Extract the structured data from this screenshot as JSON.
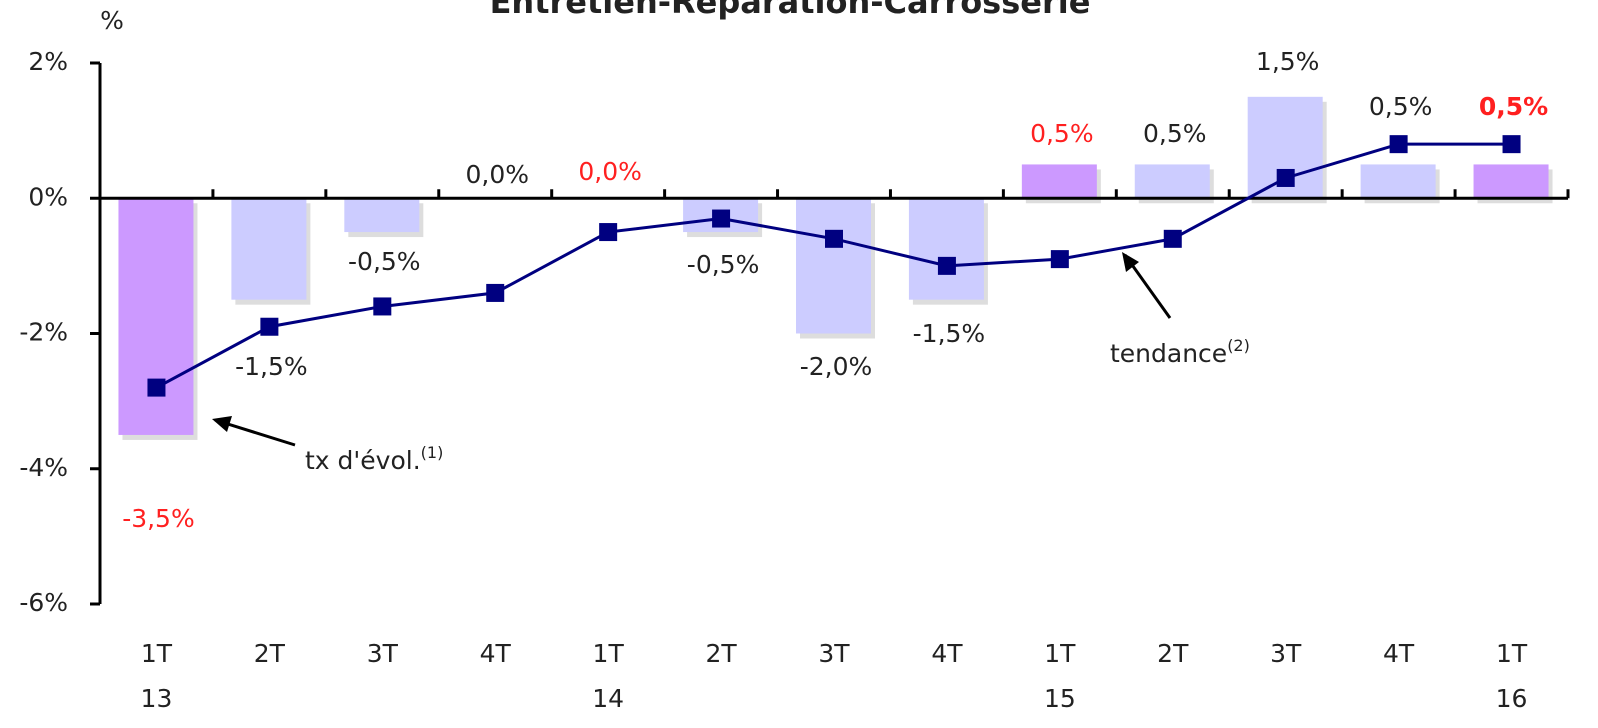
{
  "chart_data": {
    "type": "bar",
    "title": "Entretien-Réparation-Carrosserie",
    "y_unit": "%",
    "categories": [
      "1T",
      "2T",
      "3T",
      "4T",
      "1T",
      "2T",
      "3T",
      "4T",
      "1T",
      "2T",
      "3T",
      "4T",
      "1T"
    ],
    "category_years": [
      "13",
      null,
      null,
      null,
      "14",
      null,
      null,
      null,
      "15",
      null,
      null,
      null,
      "16"
    ],
    "series": [
      {
        "name": "tx d'évol.",
        "type": "bar",
        "colors": [
          "#cc99ff",
          "#ccccff",
          "#ccccff",
          "#ccccff",
          "#cc99ff",
          "#ccccff",
          "#ccccff",
          "#ccccff",
          "#cc99ff",
          "#ccccff",
          "#ccccff",
          "#ccccff",
          "#cc99ff"
        ],
        "label_colors": [
          "#ff2020",
          "#222222",
          "#222222",
          "#222222",
          "#ff2020",
          "#222222",
          "#222222",
          "#222222",
          "#ff2020",
          "#222222",
          "#222222",
          "#222222",
          "#ff2020"
        ],
        "values": [
          -3.5,
          -1.5,
          -0.5,
          0.0,
          0.0,
          -0.5,
          -2.0,
          -1.5,
          0.5,
          0.5,
          1.5,
          0.5,
          0.5
        ],
        "value_labels": [
          "-3,5%",
          "-1,5%",
          "-0,5%",
          "0,0%",
          "0,0%",
          "-0,5%",
          "-2,0%",
          "-1,5%",
          "0,5%",
          "0,5%",
          "1,5%",
          "0,5%",
          "0,5%"
        ]
      },
      {
        "name": "tendance",
        "type": "line",
        "color": "#000080",
        "values": [
          -2.8,
          -1.9,
          -1.6,
          -1.4,
          -0.5,
          -0.3,
          -0.6,
          -1.0,
          -0.9,
          -0.6,
          0.3,
          0.8,
          0.8
        ]
      }
    ],
    "annotations": [
      {
        "text": "tx d'évol.",
        "sup": "(1)"
      },
      {
        "text": "tendance",
        "sup": "(2)"
      }
    ],
    "ylim": [
      -6,
      2
    ],
    "yticks": [
      {
        "value": 2,
        "label": "2%"
      },
      {
        "value": 0,
        "label": "0%"
      },
      {
        "value": -2,
        "label": "-2%"
      },
      {
        "value": -4,
        "label": "-4%"
      },
      {
        "value": -6,
        "label": "-6%"
      }
    ]
  }
}
